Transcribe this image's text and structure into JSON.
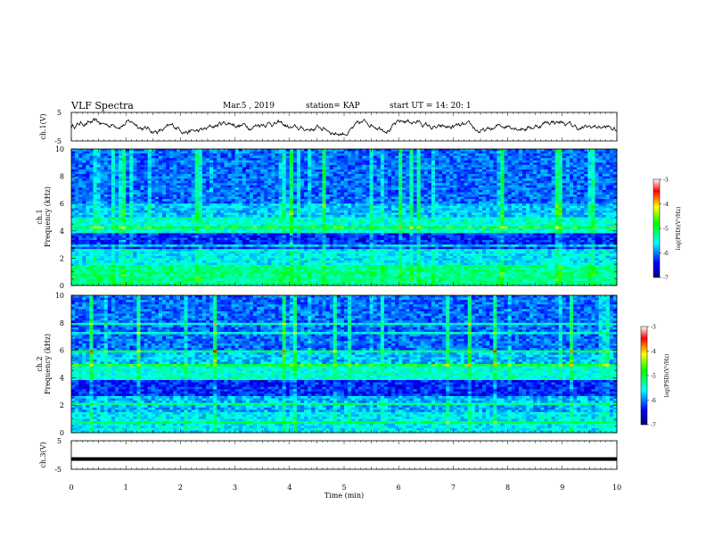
{
  "header": {
    "title": "VLF Spectra",
    "date": "Mar.5 , 2019",
    "station": "station= KAP",
    "start": "start UT =  14: 20: 1"
  },
  "chart_data": [
    {
      "type": "line",
      "name": "waveform-ch1",
      "ylabel": "ch.1(V)",
      "ylim": [
        -5,
        5
      ],
      "yticks": [
        5,
        -5
      ],
      "xlim": [
        0,
        10
      ],
      "grid": false
    },
    {
      "type": "heatmap",
      "name": "spectrogram-ch1",
      "ylabel": "ch.1\nFrequency (kHz)",
      "ylim": [
        0,
        10
      ],
      "yticks": [
        0,
        2,
        4,
        6,
        8,
        10
      ],
      "xlim": [
        0,
        10
      ],
      "colorbar": {
        "label": "log(PSD)(V²/Hz)",
        "range": [
          -7,
          -3
        ],
        "ticks": [
          -3,
          -4,
          -5,
          -6,
          -7
        ]
      }
    },
    {
      "type": "heatmap",
      "name": "spectrogram-ch2",
      "ylabel": "ch.2\nFrequency (kHz)",
      "ylim": [
        0,
        10
      ],
      "yticks": [
        0,
        2,
        4,
        6,
        8,
        10
      ],
      "xlim": [
        0,
        10
      ],
      "colorbar": {
        "label": "log(PSD)(V²/Hz)",
        "range": [
          -7,
          -3
        ],
        "ticks": [
          -3,
          -4,
          -5,
          -6,
          -7
        ]
      }
    },
    {
      "type": "line",
      "name": "waveform-ch3",
      "ylabel": "ch.3(V)",
      "ylim": [
        -5,
        5
      ],
      "yticks": [
        5,
        -5
      ],
      "xlim": [
        0,
        10
      ],
      "constant_value": -1.4,
      "grid": false
    }
  ],
  "xaxis": {
    "label": "Time (min)",
    "ticks": [
      0,
      1,
      2,
      3,
      4,
      5,
      6,
      7,
      8,
      9,
      10
    ]
  }
}
